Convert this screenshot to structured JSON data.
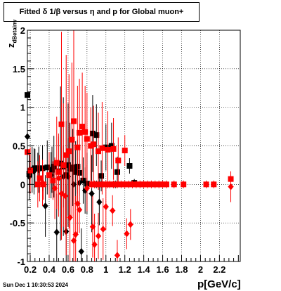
{
  "chart_data": {
    "type": "scatter",
    "title": "Fitted δ 1/β versus η and p for Global muon+",
    "xlabel": "p[GeV/c]",
    "ylabel": "z",
    "ylabel_sub": "dBetainv",
    "xlim": [
      0.17,
      2.42
    ],
    "ylim": [
      -1,
      2
    ],
    "x_ticks": [
      "0.2",
      "0.4",
      "0.6",
      "0.8",
      "1",
      "1.2",
      "1.4",
      "1.6",
      "1.8",
      "2",
      "2.2"
    ],
    "y_ticks": [
      "2",
      "1.5",
      "1",
      "0.5",
      "0",
      "-0.5",
      "-1"
    ],
    "grid": true,
    "colors": {
      "series_a": "#000000",
      "series_b": "#ff0000"
    },
    "series": [
      {
        "marker": "square",
        "color": "#000000",
        "points": [
          {
            "x": 0.17,
            "y": 1.16,
            "err": 0.9
          },
          {
            "x": 0.19,
            "y": 0.14,
            "err": 0.25
          },
          {
            "x": 0.22,
            "y": 0.19,
            "err": 0.3
          },
          {
            "x": 0.25,
            "y": 0.21,
            "err": 0.25
          },
          {
            "x": 0.28,
            "y": 0.21,
            "err": 0.2
          },
          {
            "x": 0.33,
            "y": 0.21,
            "err": 0.3
          },
          {
            "x": 0.38,
            "y": 0.22,
            "err": 0.35
          },
          {
            "x": 0.43,
            "y": 0.19,
            "err": 0.3
          },
          {
            "x": 0.45,
            "y": 0.23,
            "err": 0.4
          },
          {
            "x": 0.5,
            "y": 0.17,
            "err": 0.45
          },
          {
            "x": 0.52,
            "y": 0.27,
            "err": 1.0
          },
          {
            "x": 0.55,
            "y": 0.23,
            "err": 0.9
          },
          {
            "x": 0.58,
            "y": 0.12,
            "err": 0.7
          },
          {
            "x": 0.6,
            "y": 0.25,
            "err": 0.8
          },
          {
            "x": 0.62,
            "y": 0.2,
            "err": 0.6
          },
          {
            "x": 0.65,
            "y": 0.22,
            "err": 0.5
          },
          {
            "x": 0.68,
            "y": 0.16,
            "err": 0.4
          },
          {
            "x": 0.7,
            "y": 0.23,
            "err": 0.35
          },
          {
            "x": 0.72,
            "y": 0.15,
            "err": 0.3
          },
          {
            "x": 0.76,
            "y": 0.05,
            "err": 0.3
          },
          {
            "x": 0.8,
            "y": 0.01,
            "err": 0.4
          },
          {
            "x": 0.86,
            "y": 0.66,
            "err": 0.5
          },
          {
            "x": 0.9,
            "y": 0.64,
            "err": 0.4
          },
          {
            "x": 0.95,
            "y": 0.11,
            "err": 0.2
          },
          {
            "x": 1.0,
            "y": 0.48,
            "err": 0.3
          },
          {
            "x": 1.06,
            "y": 0.5,
            "err": 0.3
          },
          {
            "x": 1.12,
            "y": 0.16,
            "err": 0.2
          },
          {
            "x": 1.25,
            "y": 0.24,
            "err": 0.1
          },
          {
            "x": 1.3,
            "y": 0.02,
            "err": 0.05
          },
          {
            "x": 0.9,
            "y": 0.0,
            "err": 0.05
          },
          {
            "x": 0.95,
            "y": 0.0,
            "err": 0.05
          },
          {
            "x": 1.1,
            "y": 0.0,
            "err": 0.05
          }
        ]
      },
      {
        "marker": "diamond",
        "color": "#000000",
        "points": [
          {
            "x": 0.17,
            "y": 0.62,
            "err": 0.4
          },
          {
            "x": 0.19,
            "y": 0.1,
            "err": 0.3
          },
          {
            "x": 0.24,
            "y": 0.17,
            "err": 0.3
          },
          {
            "x": 0.29,
            "y": 0.19,
            "err": 0.3
          },
          {
            "x": 0.36,
            "y": -0.28,
            "err": 0.4
          },
          {
            "x": 0.42,
            "y": 0.12,
            "err": 0.3
          },
          {
            "x": 0.48,
            "y": -0.62,
            "err": 0.5
          },
          {
            "x": 0.55,
            "y": 0.1,
            "err": 0.4
          },
          {
            "x": 0.58,
            "y": -0.61,
            "err": 0.6
          },
          {
            "x": 0.6,
            "y": 0.1,
            "err": 0.5
          },
          {
            "x": 0.66,
            "y": 0.0,
            "err": 0.4
          },
          {
            "x": 0.72,
            "y": 0.02,
            "err": 0.3
          },
          {
            "x": 0.74,
            "y": -0.87,
            "err": 0.3
          },
          {
            "x": 0.78,
            "y": -0.08,
            "err": 0.3
          },
          {
            "x": 0.85,
            "y": -0.12,
            "err": 0.5
          },
          {
            "x": 0.93,
            "y": -0.23,
            "err": 0.3
          }
        ]
      },
      {
        "marker": "square",
        "color": "#ff0000",
        "points": [
          {
            "x": 0.17,
            "y": 0.42,
            "err": 0.4
          },
          {
            "x": 0.2,
            "y": 0.18,
            "err": 0.3
          },
          {
            "x": 0.28,
            "y": 0.0,
            "err": 0.3
          },
          {
            "x": 0.3,
            "y": 0.08,
            "err": 0.3
          },
          {
            "x": 0.34,
            "y": 0.0,
            "err": 0.2
          },
          {
            "x": 0.4,
            "y": 0.12,
            "err": 0.3
          },
          {
            "x": 0.44,
            "y": 0.05,
            "err": 0.25
          },
          {
            "x": 0.48,
            "y": 0.28,
            "err": 0.6
          },
          {
            "x": 0.5,
            "y": 0.16,
            "err": 0.5
          },
          {
            "x": 0.53,
            "y": 0.78,
            "err": 1.2
          },
          {
            "x": 0.55,
            "y": 0.25,
            "err": 0.8
          },
          {
            "x": 0.58,
            "y": 0.38,
            "err": 1.3
          },
          {
            "x": 0.61,
            "y": 0.43,
            "err": 1.0
          },
          {
            "x": 0.64,
            "y": 0.58,
            "err": 1.0
          },
          {
            "x": 0.66,
            "y": 0.82,
            "err": 1.3
          },
          {
            "x": 0.7,
            "y": 0.48,
            "err": 0.8
          },
          {
            "x": 0.72,
            "y": 0.67,
            "err": 0.7
          },
          {
            "x": 0.75,
            "y": 0.75,
            "err": 0.7
          },
          {
            "x": 0.78,
            "y": 0.68,
            "err": 0.6
          },
          {
            "x": 0.8,
            "y": 0.59,
            "err": 0.6
          },
          {
            "x": 0.84,
            "y": 0.5,
            "err": 0.5
          },
          {
            "x": 0.87,
            "y": 0.52,
            "err": 0.5
          },
          {
            "x": 0.92,
            "y": 0.43,
            "err": 0.5
          },
          {
            "x": 0.96,
            "y": 0.47,
            "err": 0.6
          },
          {
            "x": 1.02,
            "y": 0.45,
            "err": 0.5
          },
          {
            "x": 1.08,
            "y": 0.46,
            "err": 0.4
          },
          {
            "x": 1.13,
            "y": 0.31,
            "err": 0.3
          },
          {
            "x": 1.2,
            "y": 0.44,
            "err": 0.2
          },
          {
            "x": 0.85,
            "y": 0.0,
            "err": 0.05
          },
          {
            "x": 0.88,
            "y": 0.0,
            "err": 0.05
          },
          {
            "x": 0.92,
            "y": 0.0,
            "err": 0.05
          },
          {
            "x": 0.96,
            "y": 0.0,
            "err": 0.05
          },
          {
            "x": 1.0,
            "y": 0.0,
            "err": 0.05
          },
          {
            "x": 1.04,
            "y": 0.0,
            "err": 0.05
          },
          {
            "x": 1.08,
            "y": 0.0,
            "err": 0.05
          },
          {
            "x": 1.12,
            "y": 0.0,
            "err": 0.05
          },
          {
            "x": 1.16,
            "y": 0.0,
            "err": 0.05
          },
          {
            "x": 1.2,
            "y": 0.0,
            "err": 0.05
          },
          {
            "x": 1.24,
            "y": 0.0,
            "err": 0.05
          },
          {
            "x": 1.28,
            "y": 0.0,
            "err": 0.05
          },
          {
            "x": 1.32,
            "y": 0.0,
            "err": 0.05
          },
          {
            "x": 1.36,
            "y": 0.0,
            "err": 0.05
          },
          {
            "x": 1.4,
            "y": 0.0,
            "err": 0.05
          },
          {
            "x": 1.44,
            "y": 0.0,
            "err": 0.05
          },
          {
            "x": 1.48,
            "y": 0.0,
            "err": 0.05
          },
          {
            "x": 1.52,
            "y": 0.0,
            "err": 0.05
          },
          {
            "x": 1.56,
            "y": 0.0,
            "err": 0.05
          },
          {
            "x": 1.6,
            "y": 0.0,
            "err": 0.05
          },
          {
            "x": 1.64,
            "y": 0.0,
            "err": 0.05
          },
          {
            "x": 1.72,
            "y": 0.0,
            "err": 0.05
          },
          {
            "x": 1.82,
            "y": 0.0,
            "err": 0.05
          },
          {
            "x": 2.06,
            "y": 0.0,
            "err": 0.05
          },
          {
            "x": 2.14,
            "y": 0.0,
            "err": 0.05
          },
          {
            "x": 2.32,
            "y": 0.07,
            "err": 0.05
          }
        ]
      },
      {
        "marker": "diamond",
        "color": "#ff0000",
        "points": [
          {
            "x": 0.33,
            "y": 0.02,
            "err": 0.3
          },
          {
            "x": 0.46,
            "y": -0.05,
            "err": 0.4
          },
          {
            "x": 0.5,
            "y": 0.08,
            "err": 0.5
          },
          {
            "x": 0.53,
            "y": -0.12,
            "err": 0.6
          },
          {
            "x": 0.57,
            "y": -0.15,
            "err": 0.5
          },
          {
            "x": 0.62,
            "y": -0.43,
            "err": 0.7
          },
          {
            "x": 0.66,
            "y": -0.73,
            "err": 0.6
          },
          {
            "x": 0.68,
            "y": -0.65,
            "err": 0.5
          },
          {
            "x": 0.7,
            "y": -0.25,
            "err": 0.4
          },
          {
            "x": 0.72,
            "y": -0.33,
            "err": 0.3
          },
          {
            "x": 0.8,
            "y": -0.05,
            "err": 0.3
          },
          {
            "x": 0.86,
            "y": -0.55,
            "err": 0.4
          },
          {
            "x": 0.88,
            "y": -0.78,
            "err": 0.4
          },
          {
            "x": 0.92,
            "y": -0.67,
            "err": 0.3
          },
          {
            "x": 0.97,
            "y": -0.58,
            "err": 0.4
          },
          {
            "x": 1.0,
            "y": -0.29,
            "err": 0.3
          },
          {
            "x": 1.07,
            "y": -0.34,
            "err": 0.2
          },
          {
            "x": 1.12,
            "y": -0.92,
            "err": 0.2
          },
          {
            "x": 1.22,
            "y": -0.64,
            "err": 0.2
          },
          {
            "x": 1.26,
            "y": -0.52,
            "err": 0.2
          },
          {
            "x": 2.32,
            "y": -0.03,
            "err": 0.2
          }
        ]
      }
    ]
  },
  "footer": {
    "timestamp": "Sun Dec  1 10:30:53 2024"
  }
}
